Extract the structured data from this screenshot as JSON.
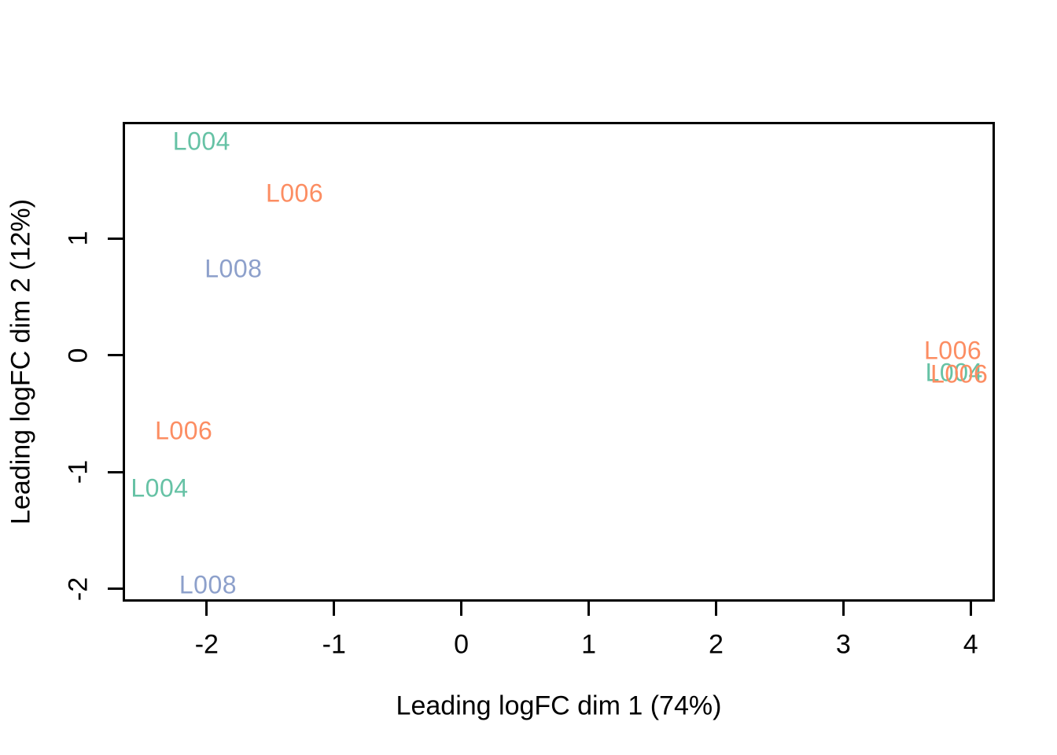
{
  "chart_data": {
    "type": "scatter",
    "subtype": "mds-text-label-plot",
    "title": "",
    "xlabel": "Leading logFC dim 1 (74%)",
    "ylabel": "Leading logFC dim 2 (12%)",
    "xlim": [
      -2.66,
      4.19
    ],
    "ylim": [
      -2.11,
      2.0
    ],
    "x_ticks": [
      "-2",
      "-1",
      "0",
      "1",
      "2",
      "3",
      "4"
    ],
    "x_tick_values": [
      -2,
      -1,
      0,
      1,
      2,
      3,
      4
    ],
    "y_ticks": [
      "-2",
      "-1",
      "0",
      "1"
    ],
    "y_tick_values": [
      -2,
      -1,
      0,
      1
    ],
    "grid": false,
    "legend_position": "none",
    "point_style": "text-labels",
    "sample_colors": {
      "L004": "#66C2A5",
      "L006": "#FC8D62",
      "L008": "#8DA0CB"
    },
    "axis_color": "#000000",
    "background_color": "#ffffff",
    "points": [
      {
        "label": "L004",
        "x": -2.04,
        "y": 1.83,
        "color": "#66C2A5"
      },
      {
        "label": "L006",
        "x": -1.31,
        "y": 1.39,
        "color": "#FC8D62"
      },
      {
        "label": "L008",
        "x": -1.79,
        "y": 0.74,
        "color": "#8DA0CB"
      },
      {
        "label": "L006",
        "x": -2.18,
        "y": -0.65,
        "color": "#FC8D62"
      },
      {
        "label": "L004",
        "x": -2.37,
        "y": -1.14,
        "color": "#66C2A5"
      },
      {
        "label": "L008",
        "x": -1.99,
        "y": -1.97,
        "color": "#8DA0CB"
      },
      {
        "label": "L006",
        "x": 3.86,
        "y": 0.04,
        "color": "#FC8D62"
      },
      {
        "label": "L004",
        "x": 3.87,
        "y": -0.15,
        "color": "#66C2A5"
      },
      {
        "label": "L006",
        "x": 3.91,
        "y": -0.16,
        "color": "#FC8D62"
      }
    ]
  }
}
